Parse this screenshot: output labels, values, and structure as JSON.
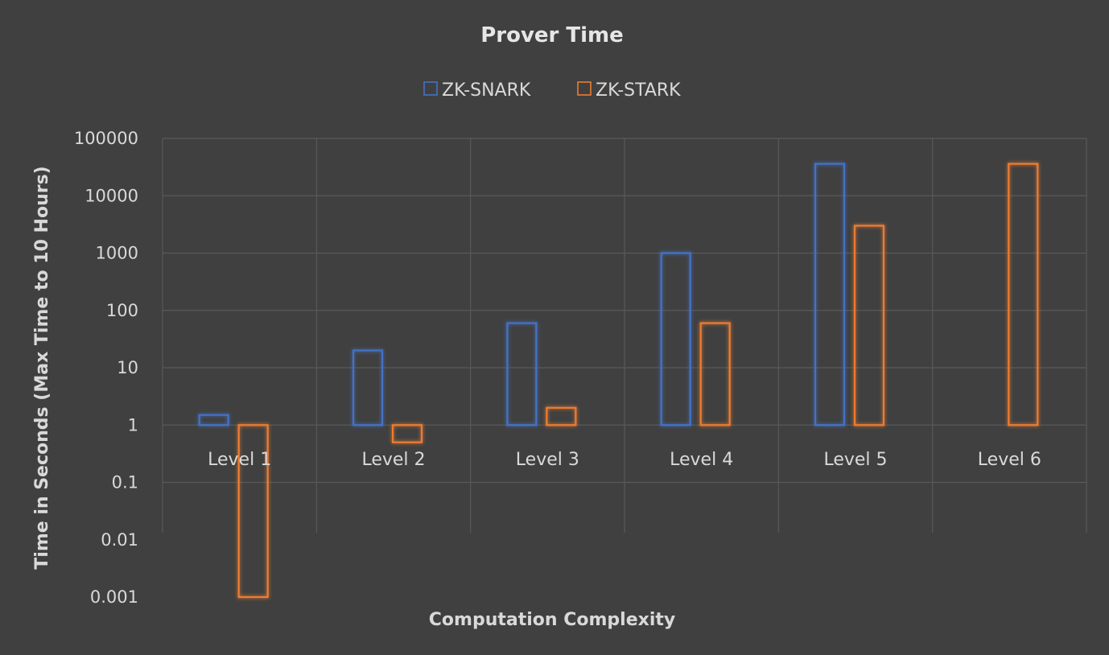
{
  "chart_data": {
    "type": "bar",
    "title": "Prover Time",
    "xlabel": "Computation Complexity",
    "ylabel": "Time in Seconds (Max  Time to 10 Hours)",
    "y_scale": "log",
    "ylim": [
      0.001,
      100000
    ],
    "y_ticks": [
      "100000",
      "10000",
      "1000",
      "100",
      "10",
      "1",
      "0.1",
      "0.01",
      "0.001"
    ],
    "categories": [
      "Level 1",
      "Level 2",
      "Level 3",
      "Level 4",
      "Level 5",
      "Level 6"
    ],
    "series": [
      {
        "name": "ZK-SNARK",
        "color": "#4472c4",
        "values": [
          1.5,
          20,
          60,
          1000,
          36000,
          null
        ]
      },
      {
        "name": "ZK-STARK",
        "color": "#ed7d31",
        "values": [
          0.001,
          0.5,
          2,
          60,
          3000,
          36000
        ]
      }
    ],
    "baseline": 1,
    "legend_position": "top",
    "grid": true,
    "background_color": "#404040"
  }
}
